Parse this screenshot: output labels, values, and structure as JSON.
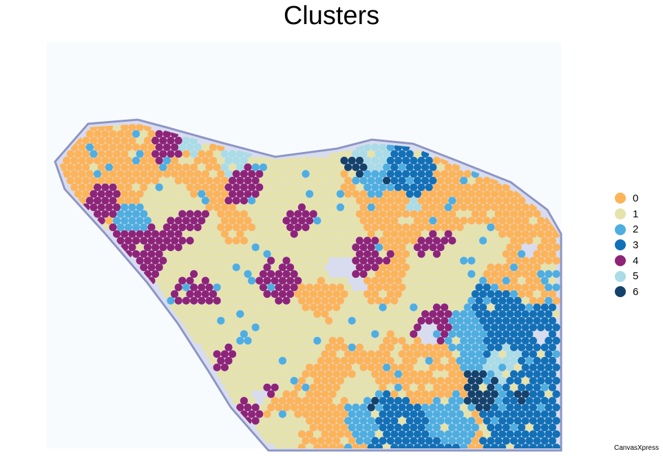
{
  "chart_data": {
    "type": "scatter",
    "title": "Clusters",
    "background": "tissue-histology-image",
    "legend_position": "right",
    "grid": false,
    "series": [
      {
        "name": "0",
        "color": "#FDB459"
      },
      {
        "name": "1",
        "color": "#E6E3AA"
      },
      {
        "name": "2",
        "color": "#4FAEE0"
      },
      {
        "name": "3",
        "color": "#1270B7"
      },
      {
        "name": "4",
        "color": "#8E2478"
      },
      {
        "name": "5",
        "color": "#A9DCE6"
      },
      {
        "name": "6",
        "color": "#15426B"
      }
    ]
  },
  "watermark": "CanvasXpress"
}
